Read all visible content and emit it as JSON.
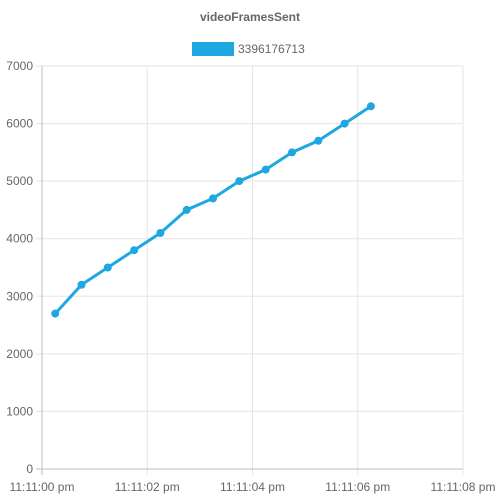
{
  "chart_data": {
    "type": "line",
    "title": "videoFramesSent",
    "legend_position": "top",
    "grid": true,
    "series": [
      {
        "name": "3396176713",
        "color": "#1ea7e1",
        "x": [
          "11:11:00.25",
          "11:11:00.75",
          "11:11:01.25",
          "11:11:01.75",
          "11:11:02.25",
          "11:11:02.75",
          "11:11:03.25",
          "11:11:03.75",
          "11:11:04.25",
          "11:11:04.75",
          "11:11:05.25",
          "11:11:05.75",
          "11:11:06.25"
        ],
        "values": [
          2700,
          3200,
          3500,
          3800,
          4100,
          4500,
          4700,
          5000,
          5200,
          5500,
          5700,
          6000,
          6300
        ]
      }
    ],
    "x_ticks": [
      "11:11:00 pm",
      "11:11:02 pm",
      "11:11:04 pm",
      "11:11:06 pm",
      "11:11:08 pm"
    ],
    "xlim": [
      "11:11:00",
      "11:11:08"
    ],
    "y_ticks": [
      0,
      1000,
      2000,
      3000,
      4000,
      5000,
      6000,
      7000
    ],
    "ylim": [
      0,
      7000
    ]
  }
}
